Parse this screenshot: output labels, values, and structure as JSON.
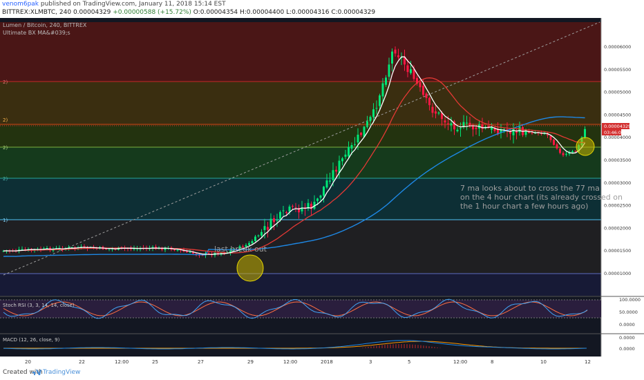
{
  "header": {
    "author": "venom6pak",
    "published": "published on TradingView.com, January 11, 2018 15:14 EST",
    "symbol_line_prefix": "BITTREX:XLMBTC, 240",
    "last": "0.00004329",
    "change": "+0.00000588 (+15.72%)",
    "ohlc": "O:0.00004354 H:0.00004400 L:0.00004316 C:0.00004329"
  },
  "chart": {
    "pair_title": "Lumen / Bitcoin, 240, BITTREX",
    "indicator_title": "Ultimate BX MA&#039;s",
    "price_labels": [
      "0.00006000",
      "0.00005500",
      "0.00005000",
      "0.00004500",
      "0.00004000",
      "0.00003500",
      "0.00003000",
      "0.00002500",
      "0.00002000",
      "0.00001500",
      "0.00001000"
    ],
    "current_price": "0.00004329",
    "countdown": "03:46:00",
    "fib_left_labels": [
      "2)",
      "2)",
      "2)",
      "2)",
      "1)"
    ],
    "annotation_breakout": "last break out",
    "annotation_note": "7 ma looks about to cross the 77 ma on the 4 hour chart (its already crossed on the 1 hour chart a few hours ago)",
    "stoch_title": "Stoch RSI (3, 3, 14, 14, close)",
    "stoch_labels": [
      "100.0000",
      "50.0000",
      "0.0000"
    ],
    "macd_title": "MACD (12, 26, close, 9)",
    "macd_labels": [
      "0.0000",
      "0.0000"
    ],
    "time_labels": [
      "20",
      "22",
      "12:00",
      "25",
      "27",
      "29",
      "12:00",
      "2018",
      "3",
      "5",
      "12:00",
      "8",
      "10",
      "12"
    ]
  },
  "footer": {
    "created": "Created with",
    "brand": "TradingView"
  },
  "colors": {
    "up": "#00e676",
    "down": "#ff1744",
    "ma7": "#ffffff",
    "ma_mid": "#e53935",
    "ma77": "#1e88e5"
  },
  "chart_data": {
    "type": "line",
    "title": "Lumen / Bitcoin, 240, BITTREX",
    "ylim": [
      8.5e-06,
      6.5e-06
    ],
    "x_ticks": [
      "20",
      "22",
      "12:00",
      "25",
      "27",
      "29",
      "12:00",
      "2018",
      "3",
      "5",
      "12:00",
      "8",
      "10",
      "12"
    ],
    "series": [
      {
        "name": "close",
        "values": [
          1.5e-05,
          1.53e-05,
          1.57e-05,
          1.55e-05,
          1.56e-05,
          1.55e-05,
          1.45e-05,
          1.42e-05,
          1.48e-05,
          1.65e-05,
          2.15e-05,
          2.4e-05,
          2.5e-05,
          3.1e-05,
          3.8e-05,
          4.5e-05,
          6e-05,
          5.4e-05,
          4.7e-05,
          4.3e-05,
          4.2e-05,
          4.15e-05,
          4.1e-05,
          3.6e-05,
          3.72e-05,
          4.33e-05
        ]
      }
    ]
  }
}
